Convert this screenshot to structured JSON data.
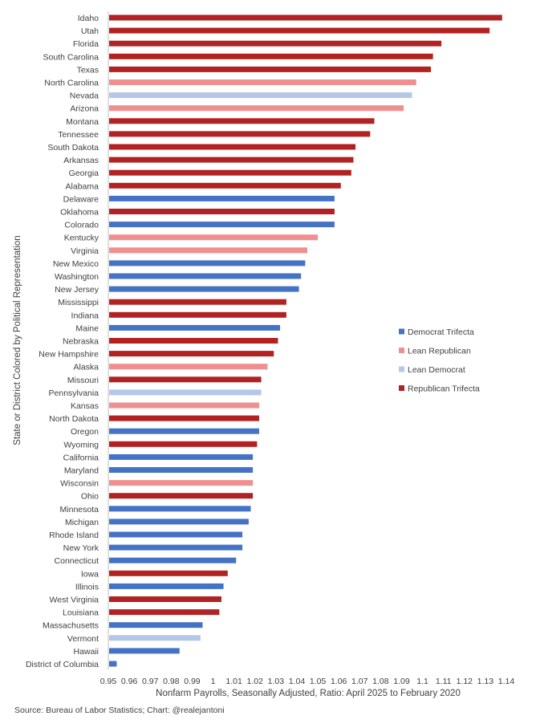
{
  "chart_data": {
    "type": "bar",
    "orientation": "horizontal",
    "xlabel": "Nonfarm Payrolls, Seasonally Adjusted, Ratio: April 2025 to February 2020",
    "ylabel": "State or District Colored by Political Representation",
    "xlim": [
      0.95,
      1.14
    ],
    "x_ticks": [
      "0.95",
      "0.96",
      "0.97",
      "0.98",
      "0.99",
      "1",
      "1.01",
      "1.02",
      "1.03",
      "1.04",
      "1.05",
      "1.06",
      "1.07",
      "1.08",
      "1.09",
      "1.1",
      "1.11",
      "1.12",
      "1.13",
      "1.14"
    ],
    "grid": false,
    "legend_position": "right",
    "groups": [
      {
        "name": "Democrat Trifecta",
        "color": "#4472c4"
      },
      {
        "name": "Lean Republican",
        "color": "#f08f8f"
      },
      {
        "name": "Lean Democrat",
        "color": "#b4c7e7"
      },
      {
        "name": "Republican Trifecta",
        "color": "#b22222"
      }
    ],
    "bars": [
      {
        "label": "Idaho",
        "value": 1.138,
        "group": "Republican Trifecta"
      },
      {
        "label": "Utah",
        "value": 1.132,
        "group": "Republican Trifecta"
      },
      {
        "label": "Florida",
        "value": 1.109,
        "group": "Republican Trifecta"
      },
      {
        "label": "South Carolina",
        "value": 1.105,
        "group": "Republican Trifecta"
      },
      {
        "label": "Texas",
        "value": 1.104,
        "group": "Republican Trifecta"
      },
      {
        "label": "North Carolina",
        "value": 1.097,
        "group": "Lean Republican"
      },
      {
        "label": "Nevada",
        "value": 1.095,
        "group": "Lean Democrat"
      },
      {
        "label": "Arizona",
        "value": 1.091,
        "group": "Lean Republican"
      },
      {
        "label": "Montana",
        "value": 1.077,
        "group": "Republican Trifecta"
      },
      {
        "label": "Tennessee",
        "value": 1.075,
        "group": "Republican Trifecta"
      },
      {
        "label": "South Dakota",
        "value": 1.068,
        "group": "Republican Trifecta"
      },
      {
        "label": "Arkansas",
        "value": 1.067,
        "group": "Republican Trifecta"
      },
      {
        "label": "Georgia",
        "value": 1.066,
        "group": "Republican Trifecta"
      },
      {
        "label": "Alabama",
        "value": 1.061,
        "group": "Republican Trifecta"
      },
      {
        "label": "Delaware",
        "value": 1.058,
        "group": "Democrat Trifecta"
      },
      {
        "label": "Oklahoma",
        "value": 1.058,
        "group": "Republican Trifecta"
      },
      {
        "label": "Colorado",
        "value": 1.058,
        "group": "Democrat Trifecta"
      },
      {
        "label": "Kentucky",
        "value": 1.05,
        "group": "Lean Republican"
      },
      {
        "label": "Virginia",
        "value": 1.045,
        "group": "Lean Republican"
      },
      {
        "label": "New Mexico",
        "value": 1.044,
        "group": "Democrat Trifecta"
      },
      {
        "label": "Washington",
        "value": 1.042,
        "group": "Democrat Trifecta"
      },
      {
        "label": "New Jersey",
        "value": 1.041,
        "group": "Democrat Trifecta"
      },
      {
        "label": "Mississippi",
        "value": 1.035,
        "group": "Republican Trifecta"
      },
      {
        "label": "Indiana",
        "value": 1.035,
        "group": "Republican Trifecta"
      },
      {
        "label": "Maine",
        "value": 1.032,
        "group": "Democrat Trifecta"
      },
      {
        "label": "Nebraska",
        "value": 1.031,
        "group": "Republican Trifecta"
      },
      {
        "label": "New Hampshire",
        "value": 1.029,
        "group": "Republican Trifecta"
      },
      {
        "label": "Alaska",
        "value": 1.026,
        "group": "Lean Republican"
      },
      {
        "label": "Missouri",
        "value": 1.023,
        "group": "Republican Trifecta"
      },
      {
        "label": "Pennsylvania",
        "value": 1.023,
        "group": "Lean Democrat"
      },
      {
        "label": "Kansas",
        "value": 1.022,
        "group": "Lean Republican"
      },
      {
        "label": "North Dakota",
        "value": 1.022,
        "group": "Republican Trifecta"
      },
      {
        "label": "Oregon",
        "value": 1.022,
        "group": "Democrat Trifecta"
      },
      {
        "label": "Wyoming",
        "value": 1.021,
        "group": "Republican Trifecta"
      },
      {
        "label": "California",
        "value": 1.019,
        "group": "Democrat Trifecta"
      },
      {
        "label": "Maryland",
        "value": 1.019,
        "group": "Democrat Trifecta"
      },
      {
        "label": "Wisconsin",
        "value": 1.019,
        "group": "Lean Republican"
      },
      {
        "label": "Ohio",
        "value": 1.019,
        "group": "Republican Trifecta"
      },
      {
        "label": "Minnesota",
        "value": 1.018,
        "group": "Democrat Trifecta"
      },
      {
        "label": "Michigan",
        "value": 1.017,
        "group": "Democrat Trifecta"
      },
      {
        "label": "Rhode Island",
        "value": 1.014,
        "group": "Democrat Trifecta"
      },
      {
        "label": "New York",
        "value": 1.014,
        "group": "Democrat Trifecta"
      },
      {
        "label": "Connecticut",
        "value": 1.011,
        "group": "Democrat Trifecta"
      },
      {
        "label": "Iowa",
        "value": 1.007,
        "group": "Republican Trifecta"
      },
      {
        "label": "Illinois",
        "value": 1.005,
        "group": "Democrat Trifecta"
      },
      {
        "label": "West Virginia",
        "value": 1.004,
        "group": "Republican Trifecta"
      },
      {
        "label": "Louisiana",
        "value": 1.003,
        "group": "Republican Trifecta"
      },
      {
        "label": "Massachusetts",
        "value": 0.995,
        "group": "Democrat Trifecta"
      },
      {
        "label": "Vermont",
        "value": 0.994,
        "group": "Lean Democrat"
      },
      {
        "label": "Hawaii",
        "value": 0.984,
        "group": "Democrat Trifecta"
      },
      {
        "label": "District of Columbia",
        "value": 0.954,
        "group": "Democrat Trifecta"
      }
    ]
  },
  "source": "Source: Bureau of Labor Statistics; Chart: @realejantoni"
}
